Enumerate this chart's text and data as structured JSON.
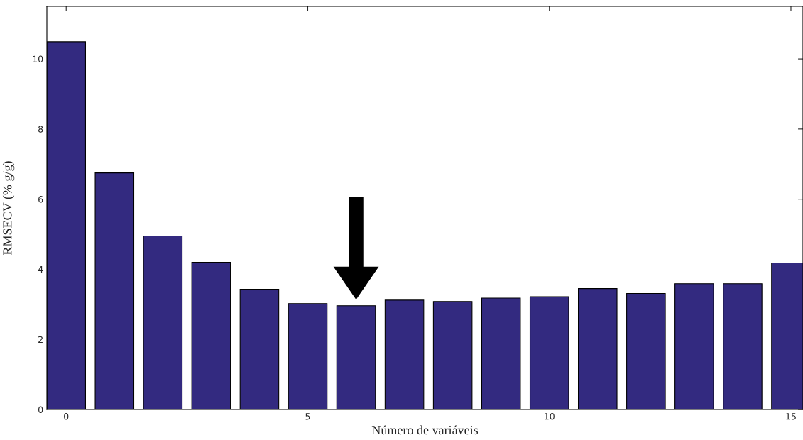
{
  "chart_data": {
    "type": "bar",
    "x": [
      0,
      1,
      2,
      3,
      4,
      5,
      6,
      7,
      8,
      9,
      10,
      11,
      12,
      13,
      14,
      15
    ],
    "values": [
      10.49,
      6.75,
      4.95,
      4.2,
      3.43,
      3.02,
      2.96,
      3.12,
      3.08,
      3.18,
      3.22,
      3.45,
      3.31,
      3.59,
      3.59,
      4.18
    ],
    "color": "#332a80",
    "xlabel": "Número de variáveis",
    "ylabel": "RMSECV (% g/g)",
    "xlim": [
      -0.4,
      15.25
    ],
    "xticks": [
      0,
      5,
      10,
      15
    ],
    "ylim": [
      0,
      11.5
    ],
    "yticks": [
      0,
      2,
      4,
      6,
      8,
      10
    ],
    "grid": false
  }
}
